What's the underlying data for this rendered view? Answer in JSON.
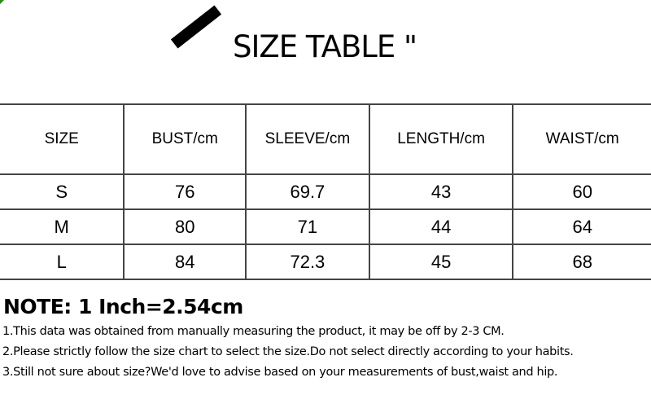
{
  "title": "SIZE TABLE \"",
  "table": {
    "headers": [
      "SIZE",
      "BUST/cm",
      "SLEEVE/cm",
      "LENGTH/cm",
      "WAIST/cm"
    ],
    "rows": [
      [
        "S",
        "76",
        "69.7",
        "43",
        "60"
      ],
      [
        "M",
        "80",
        "71",
        "44",
        "64"
      ],
      [
        "L",
        "84",
        "72.3",
        "45",
        "68"
      ]
    ]
  },
  "note": {
    "heading": "NOTE: 1 Inch=2.54cm",
    "lines": [
      "1.This data was obtained from manually measuring the product, it may be off by 2-3 CM.",
      "2.Please strictly follow the size chart to select the size.Do not select directly according to your habits.",
      "3.Still not sure about size?We'd love to advise based on your measurements of bust,waist and hip."
    ]
  },
  "colors": {
    "corner_accent": "#2a8a1a",
    "border": "#444444"
  }
}
